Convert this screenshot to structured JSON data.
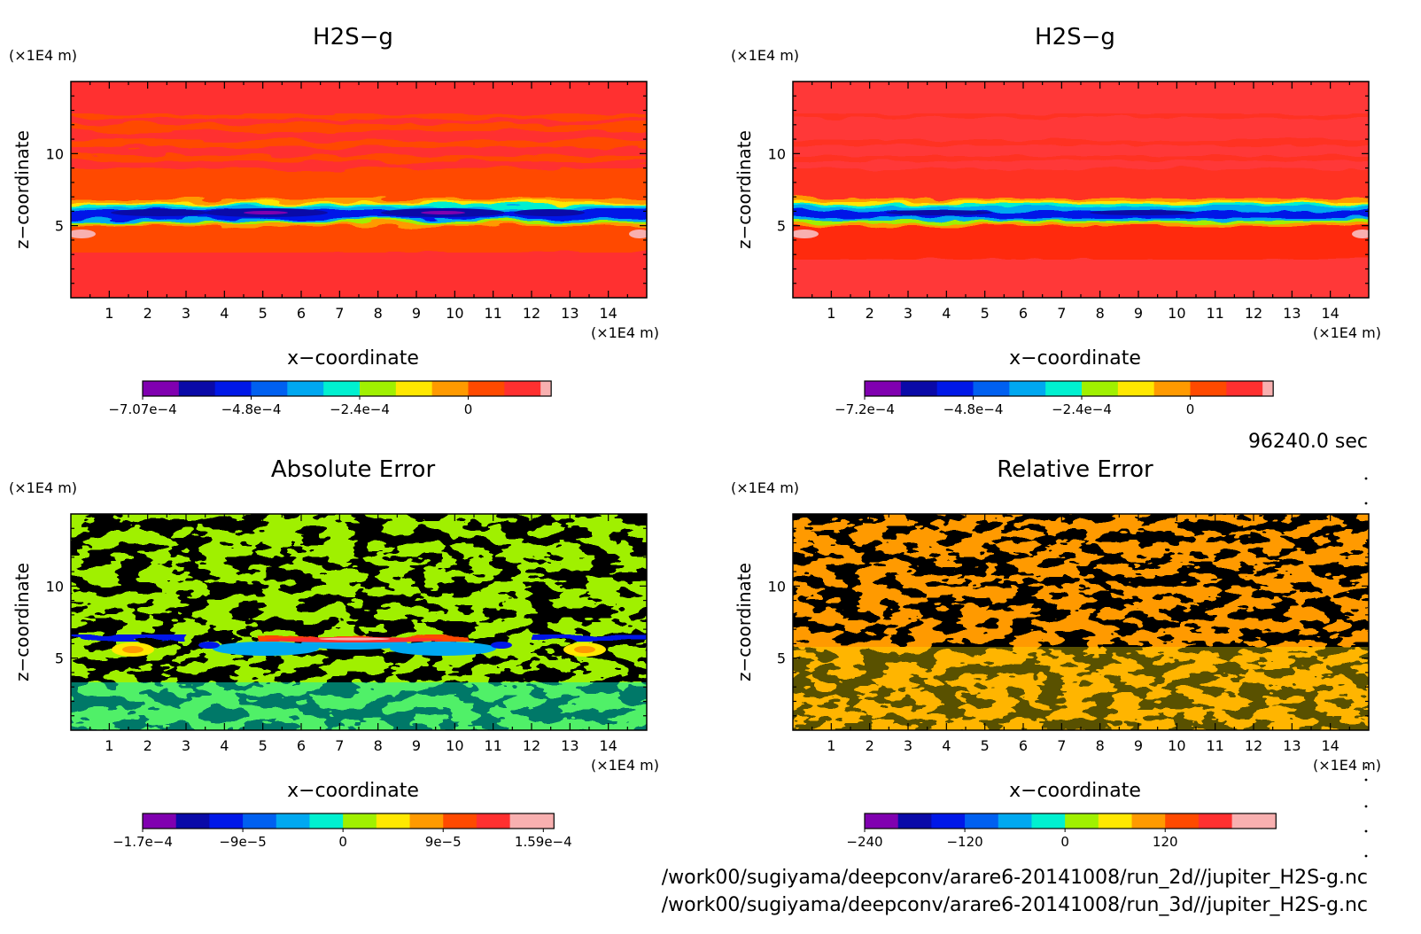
{
  "time_label": "96240.0 sec",
  "files": [
    "/work00/sugiyama/deepconv/arare6-20141008/run_2d//jupiter_H2S-g.nc",
    "/work00/sugiyama/deepconv/arare6-20141008/run_3d//jupiter_H2S-g.nc"
  ],
  "palette": [
    "#8000b0",
    "#0a0aa8",
    "#0018e8",
    "#0060f0",
    "#00a8f0",
    "#00f0d0",
    "#a0f000",
    "#ffe800",
    "#ff9a00",
    "#ff4a00",
    "#ff3030",
    "#f8b0b0"
  ],
  "chart_data": [
    {
      "type": "heatmap",
      "title": "H2S−g",
      "xlabel": "x−coordinate",
      "ylabel": "z−coordinate",
      "x_unit": "(×1E4 m)",
      "y_unit": "(×1E4 m)",
      "xlim": [
        0,
        15
      ],
      "ylim": [
        0,
        15
      ],
      "x_ticks": [
        "1",
        "2",
        "3",
        "4",
        "5",
        "6",
        "7",
        "8",
        "9",
        "10",
        "11",
        "12",
        "13",
        "14"
      ],
      "y_ticks": [
        "5",
        "10"
      ],
      "colorbar_levels": 11,
      "colorbar_ticks": [
        {
          "label": "−7.07e−4",
          "level": 0
        },
        {
          "label": "−4.8e−4",
          "level": 3
        },
        {
          "label": "−2.4e−4",
          "level": 6
        },
        {
          "label": "0",
          "level": 9
        }
      ]
    },
    {
      "type": "heatmap",
      "title": "H2S−g",
      "xlabel": "x−coordinate",
      "ylabel": "z−coordinate",
      "x_unit": "(×1E4 m)",
      "y_unit": "(×1E4 m)",
      "xlim": [
        0,
        15
      ],
      "ylim": [
        0,
        15
      ],
      "x_ticks": [
        "1",
        "2",
        "3",
        "4",
        "5",
        "6",
        "7",
        "8",
        "9",
        "10",
        "11",
        "12",
        "13",
        "14"
      ],
      "y_ticks": [
        "5",
        "10"
      ],
      "colorbar_levels": 11,
      "colorbar_ticks": [
        {
          "label": "−7.2e−4",
          "level": 0
        },
        {
          "label": "−4.8e−4",
          "level": 3
        },
        {
          "label": "−2.4e−4",
          "level": 6
        },
        {
          "label": "0",
          "level": 9
        }
      ]
    },
    {
      "type": "heatmap",
      "title": "Absolute Error",
      "xlabel": "x−coordinate",
      "ylabel": "z−coordinate",
      "x_unit": "(×1E4 m)",
      "y_unit": "(×1E4 m)",
      "xlim": [
        0,
        15
      ],
      "ylim": [
        0,
        15
      ],
      "x_ticks": [
        "1",
        "2",
        "3",
        "4",
        "5",
        "6",
        "7",
        "8",
        "9",
        "10",
        "11",
        "12",
        "13",
        "14"
      ],
      "y_ticks": [
        "5",
        "10"
      ],
      "colorbar_levels": 12,
      "colorbar_ticks": [
        {
          "label": "−1.7e−4",
          "level": 0
        },
        {
          "label": "−9e−5",
          "level": 3
        },
        {
          "label": "0",
          "level": 6
        },
        {
          "label": "9e−5",
          "level": 9
        },
        {
          "label": "1.59e−4",
          "level": 12
        }
      ]
    },
    {
      "type": "heatmap",
      "title": "Relative Error",
      "xlabel": "x−coordinate",
      "ylabel": "z−coordinate",
      "x_unit": "(×1E4 m)",
      "y_unit": "(×1E4 m)",
      "xlim": [
        0,
        15
      ],
      "ylim": [
        0,
        15
      ],
      "x_ticks": [
        "1",
        "2",
        "3",
        "4",
        "5",
        "6",
        "7",
        "8",
        "9",
        "10",
        "11",
        "12",
        "13",
        "14"
      ],
      "y_ticks": [
        "5",
        "10"
      ],
      "colorbar_levels": 12,
      "colorbar_ticks": [
        {
          "label": "−240",
          "level": 0
        },
        {
          "label": "−120",
          "level": 3
        },
        {
          "label": "0",
          "level": 6
        },
        {
          "label": "120",
          "level": 9
        }
      ]
    }
  ]
}
